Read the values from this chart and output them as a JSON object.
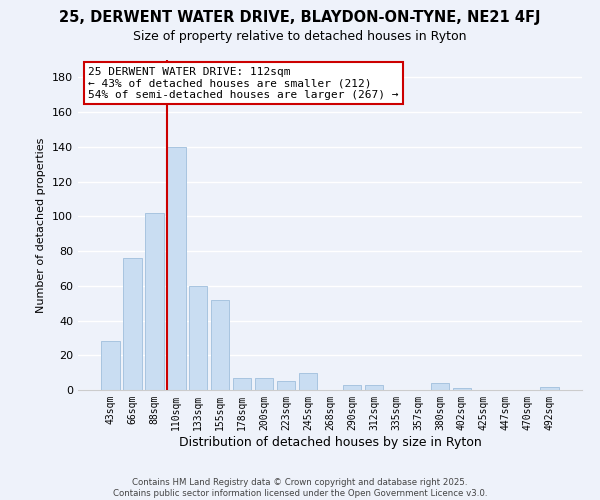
{
  "title1": "25, DERWENT WATER DRIVE, BLAYDON-ON-TYNE, NE21 4FJ",
  "title2": "Size of property relative to detached houses in Ryton",
  "xlabel": "Distribution of detached houses by size in Ryton",
  "ylabel": "Number of detached properties",
  "bar_labels": [
    "43sqm",
    "66sqm",
    "88sqm",
    "110sqm",
    "133sqm",
    "155sqm",
    "178sqm",
    "200sqm",
    "223sqm",
    "245sqm",
    "268sqm",
    "290sqm",
    "312sqm",
    "335sqm",
    "357sqm",
    "380sqm",
    "402sqm",
    "425sqm",
    "447sqm",
    "470sqm",
    "492sqm"
  ],
  "bar_values": [
    28,
    76,
    102,
    140,
    60,
    52,
    7,
    7,
    5,
    10,
    0,
    3,
    3,
    0,
    0,
    4,
    1,
    0,
    0,
    0,
    2
  ],
  "bar_color": "#c9ddf2",
  "bar_edge_color": "#a8c4e0",
  "vline_color": "#cc0000",
  "ylim": [
    0,
    190
  ],
  "yticks": [
    0,
    20,
    40,
    60,
    80,
    100,
    120,
    140,
    160,
    180
  ],
  "annotation_line1": "25 DERWENT WATER DRIVE: 112sqm",
  "annotation_line2": "← 43% of detached houses are smaller (212)",
  "annotation_line3": "54% of semi-detached houses are larger (267) →",
  "footer1": "Contains HM Land Registry data © Crown copyright and database right 2025.",
  "footer2": "Contains public sector information licensed under the Open Government Licence v3.0.",
  "background_color": "#eef2fa",
  "grid_color": "#ffffff",
  "title_fontsize": 10.5,
  "subtitle_fontsize": 9
}
